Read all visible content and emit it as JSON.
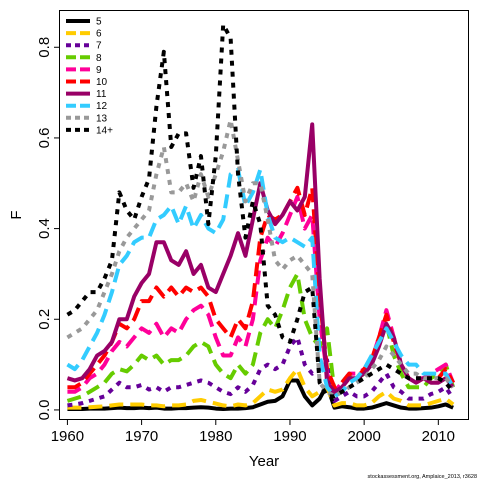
{
  "chart_data": {
    "type": "line",
    "xlabel": "Year",
    "ylabel": "F",
    "xlim": [
      1959,
      2014
    ],
    "ylim": [
      -0.02,
      0.88
    ],
    "x_ticks": [
      1960,
      1970,
      1980,
      1990,
      2000,
      2010
    ],
    "y_ticks": [
      0.0,
      0.2,
      0.4,
      0.6,
      0.8
    ],
    "grid": false,
    "legend_position": "top-left",
    "credit": "stockassessment.org, Amplaice_2013, r3628",
    "x": [
      1960,
      1961,
      1962,
      1963,
      1964,
      1965,
      1966,
      1967,
      1968,
      1969,
      1970,
      1971,
      1972,
      1973,
      1974,
      1975,
      1976,
      1977,
      1978,
      1979,
      1980,
      1981,
      1982,
      1983,
      1984,
      1985,
      1986,
      1987,
      1988,
      1989,
      1990,
      1991,
      1992,
      1993,
      1994,
      1995,
      1996,
      1997,
      1998,
      1999,
      2000,
      2001,
      2002,
      2003,
      2004,
      2005,
      2006,
      2007,
      2008,
      2009,
      2010,
      2011,
      2012
    ],
    "series": [
      {
        "name": "5",
        "color": "#000000",
        "dash": "solid",
        "values": [
          0.002,
          0.002,
          0.002,
          0.003,
          0.003,
          0.003,
          0.004,
          0.005,
          0.004,
          0.004,
          0.005,
          0.004,
          0.005,
          0.003,
          0.003,
          0.004,
          0.004,
          0.005,
          0.006,
          0.005,
          0.003,
          0.002,
          0.003,
          0.003,
          0.004,
          0.006,
          0.012,
          0.018,
          0.02,
          0.03,
          0.065,
          0.065,
          0.03,
          0.01,
          0.025,
          0.055,
          0.005,
          0.008,
          0.006,
          0.003,
          0.003,
          0.005,
          0.01,
          0.015,
          0.01,
          0.005,
          0.003,
          0.003,
          0.004,
          0.005,
          0.008,
          0.012,
          0.005
        ]
      },
      {
        "name": "6",
        "color": "#ffcc00",
        "dash": "long",
        "values": [
          0.005,
          0.005,
          0.005,
          0.006,
          0.007,
          0.008,
          0.01,
          0.012,
          0.012,
          0.012,
          0.012,
          0.01,
          0.01,
          0.008,
          0.01,
          0.01,
          0.012,
          0.02,
          0.022,
          0.018,
          0.014,
          0.01,
          0.008,
          0.012,
          0.01,
          0.015,
          0.03,
          0.045,
          0.04,
          0.045,
          0.07,
          0.09,
          0.05,
          0.03,
          0.04,
          0.05,
          0.01,
          0.015,
          0.015,
          0.01,
          0.01,
          0.015,
          0.03,
          0.04,
          0.025,
          0.02,
          0.01,
          0.01,
          0.01,
          0.015,
          0.02,
          0.025,
          0.012
        ]
      },
      {
        "name": "7",
        "color": "#660099",
        "dash": "dot",
        "values": [
          0.01,
          0.012,
          0.015,
          0.02,
          0.025,
          0.03,
          0.045,
          0.06,
          0.05,
          0.05,
          0.055,
          0.045,
          0.05,
          0.04,
          0.05,
          0.05,
          0.055,
          0.06,
          0.065,
          0.06,
          0.05,
          0.04,
          0.035,
          0.05,
          0.04,
          0.055,
          0.09,
          0.1,
          0.09,
          0.1,
          0.14,
          0.16,
          0.1,
          0.08,
          0.09,
          0.11,
          0.02,
          0.03,
          0.04,
          0.03,
          0.03,
          0.04,
          0.06,
          0.08,
          0.05,
          0.04,
          0.025,
          0.025,
          0.025,
          0.035,
          0.04,
          0.05,
          0.025
        ]
      },
      {
        "name": "8",
        "color": "#66cc00",
        "dash": "long",
        "values": [
          0.02,
          0.025,
          0.03,
          0.04,
          0.05,
          0.06,
          0.08,
          0.09,
          0.085,
          0.1,
          0.12,
          0.11,
          0.12,
          0.1,
          0.11,
          0.11,
          0.12,
          0.14,
          0.15,
          0.14,
          0.1,
          0.08,
          0.07,
          0.1,
          0.08,
          0.1,
          0.17,
          0.2,
          0.18,
          0.22,
          0.27,
          0.3,
          0.2,
          0.16,
          0.14,
          0.18,
          0.04,
          0.06,
          0.08,
          0.07,
          0.08,
          0.1,
          0.15,
          0.19,
          0.12,
          0.08,
          0.05,
          0.05,
          0.05,
          0.07,
          0.08,
          0.1,
          0.05
        ]
      },
      {
        "name": "9",
        "color": "#ff0099",
        "dash": "long",
        "values": [
          0.04,
          0.04,
          0.05,
          0.07,
          0.08,
          0.1,
          0.13,
          0.15,
          0.14,
          0.16,
          0.18,
          0.17,
          0.19,
          0.16,
          0.18,
          0.17,
          0.2,
          0.22,
          0.23,
          0.21,
          0.16,
          0.12,
          0.12,
          0.16,
          0.14,
          0.2,
          0.33,
          0.38,
          0.36,
          0.39,
          0.43,
          0.47,
          0.4,
          0.43,
          0.2,
          0.08,
          0.04,
          0.06,
          0.08,
          0.08,
          0.09,
          0.11,
          0.16,
          0.22,
          0.16,
          0.1,
          0.07,
          0.07,
          0.07,
          0.08,
          0.09,
          0.1,
          0.06
        ]
      },
      {
        "name": "10",
        "color": "#ff0000",
        "dash": "long",
        "values": [
          0.05,
          0.05,
          0.06,
          0.08,
          0.1,
          0.12,
          0.15,
          0.19,
          0.18,
          0.2,
          0.24,
          0.24,
          0.27,
          0.25,
          0.27,
          0.25,
          0.27,
          0.26,
          0.27,
          0.25,
          0.2,
          0.18,
          0.16,
          0.2,
          0.18,
          0.24,
          0.38,
          0.43,
          0.42,
          0.43,
          0.46,
          0.49,
          0.43,
          0.49,
          0.25,
          0.09,
          0.05,
          0.06,
          0.08,
          0.07,
          0.09,
          0.11,
          0.16,
          0.21,
          0.15,
          0.1,
          0.07,
          0.06,
          0.07,
          0.07,
          0.07,
          0.09,
          0.06
        ]
      },
      {
        "name": "11",
        "color": "#990066",
        "dash": "solid",
        "values": [
          0.07,
          0.065,
          0.07,
          0.09,
          0.12,
          0.13,
          0.15,
          0.2,
          0.2,
          0.25,
          0.28,
          0.3,
          0.37,
          0.37,
          0.33,
          0.32,
          0.35,
          0.3,
          0.32,
          0.27,
          0.26,
          0.3,
          0.34,
          0.39,
          0.34,
          0.42,
          0.5,
          0.44,
          0.41,
          0.43,
          0.46,
          0.44,
          0.47,
          0.63,
          0.29,
          0.06,
          0.04,
          0.05,
          0.07,
          0.07,
          0.08,
          0.1,
          0.14,
          0.19,
          0.16,
          0.1,
          0.07,
          0.06,
          0.07,
          0.06,
          0.06,
          0.07,
          0.05
        ]
      },
      {
        "name": "12",
        "color": "#33ccff",
        "dash": "long",
        "values": [
          0.1,
          0.09,
          0.11,
          0.14,
          0.17,
          0.21,
          0.26,
          0.32,
          0.34,
          0.37,
          0.38,
          0.38,
          0.42,
          0.43,
          0.45,
          0.41,
          0.45,
          0.4,
          0.43,
          0.4,
          0.39,
          0.42,
          0.52,
          0.53,
          0.45,
          0.48,
          0.53,
          0.43,
          0.38,
          0.37,
          0.38,
          0.37,
          0.36,
          0.38,
          0.12,
          0.05,
          0.03,
          0.04,
          0.06,
          0.07,
          0.09,
          0.12,
          0.15,
          0.18,
          0.15,
          0.12,
          0.1,
          0.1,
          0.08,
          0.08,
          0.08,
          0.08,
          0.05
        ]
      },
      {
        "name": "13",
        "color": "#999999",
        "dash": "dot",
        "values": [
          0.16,
          0.17,
          0.18,
          0.2,
          0.22,
          0.26,
          0.3,
          0.35,
          0.38,
          0.4,
          0.42,
          0.44,
          0.52,
          0.58,
          0.48,
          0.48,
          0.5,
          0.46,
          0.52,
          0.47,
          0.52,
          0.57,
          0.64,
          0.55,
          0.46,
          0.5,
          0.5,
          0.42,
          0.33,
          0.31,
          0.33,
          0.34,
          0.32,
          0.3,
          0.06,
          0.04,
          0.03,
          0.04,
          0.05,
          0.06,
          0.07,
          0.09,
          0.11,
          0.14,
          0.12,
          0.1,
          0.08,
          0.08,
          0.07,
          0.07,
          0.07,
          0.07,
          0.05
        ]
      },
      {
        "name": "14+",
        "color": "#000000",
        "dash": "dot",
        "values": [
          0.21,
          0.22,
          0.24,
          0.26,
          0.26,
          0.29,
          0.33,
          0.48,
          0.44,
          0.42,
          0.47,
          0.51,
          0.67,
          0.79,
          0.58,
          0.61,
          0.61,
          0.49,
          0.56,
          0.41,
          0.56,
          0.85,
          0.82,
          0.52,
          0.38,
          0.46,
          0.41,
          0.23,
          0.21,
          0.16,
          0.15,
          0.2,
          0.26,
          0.27,
          0.06,
          0.03,
          0.03,
          0.04,
          0.05,
          0.06,
          0.07,
          0.08,
          0.09,
          0.1,
          0.09,
          0.08,
          0.07,
          0.07,
          0.07,
          0.07,
          0.07,
          0.06,
          0.04
        ]
      }
    ]
  }
}
